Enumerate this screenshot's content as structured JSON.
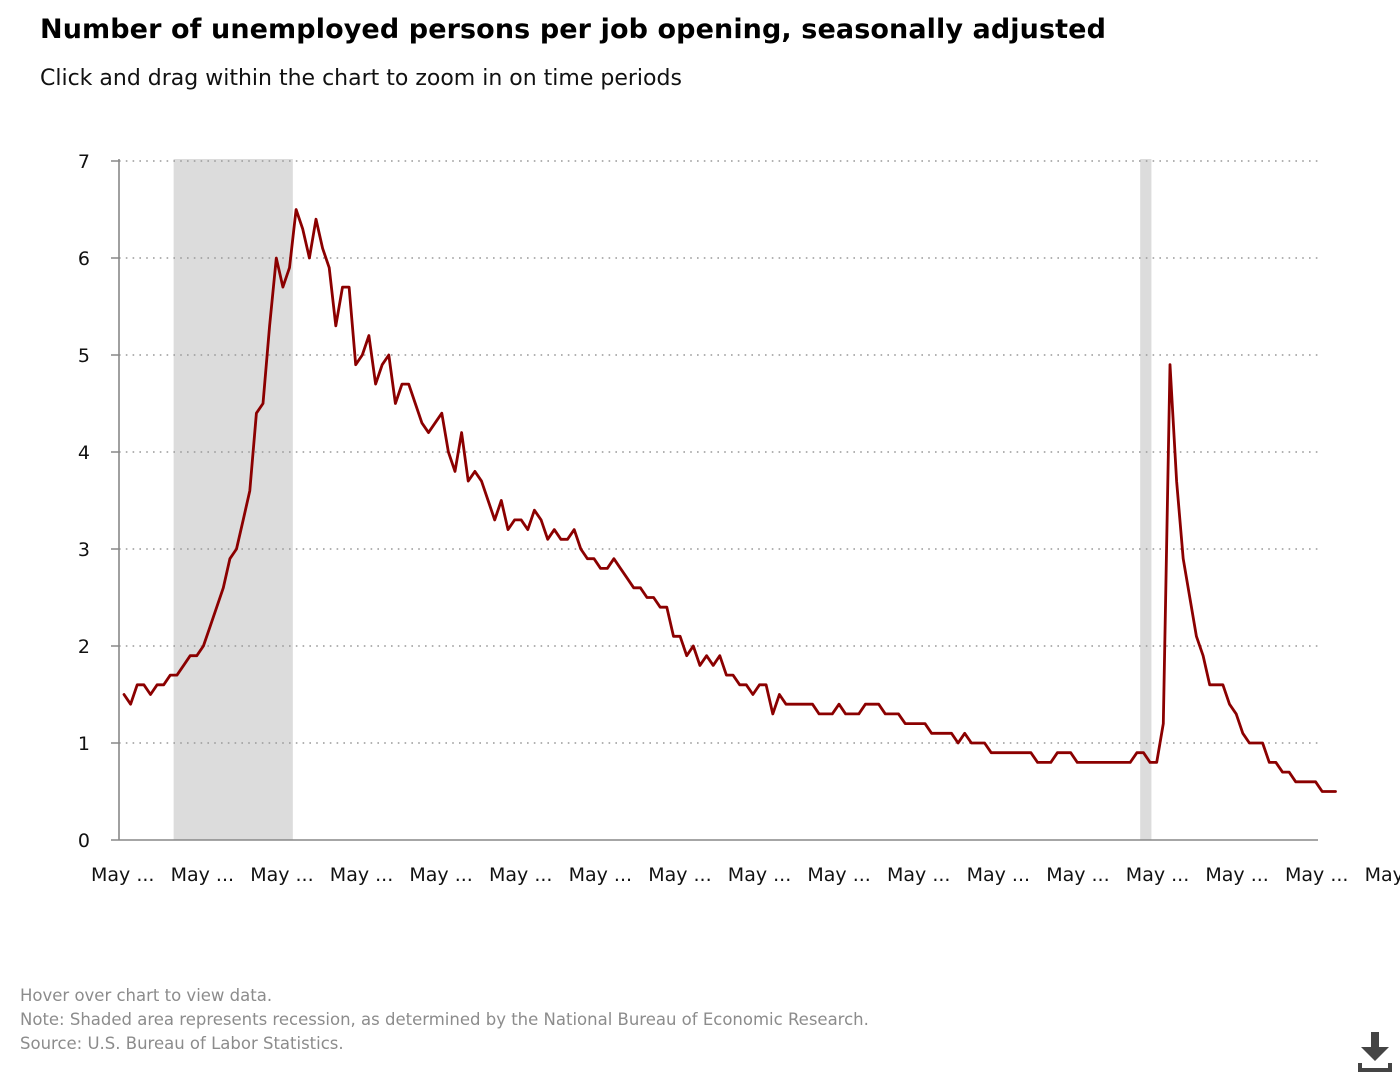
{
  "title": "Number of unemployed persons per job opening, seasonally adjusted",
  "subtitle": "Click and drag within the chart to zoom in on time periods",
  "footer": {
    "hover": "Hover over chart to view data.",
    "note": "Note: Shaded area represents recession, as determined by the National Bureau of Economic Research.",
    "source": "Source: U.S. Bureau of Labor Statistics."
  },
  "download_icon": "download-icon",
  "colors": {
    "line": "#8b0000",
    "recession": "#dcdcdc",
    "grid": "#999999",
    "axis": "#888888"
  },
  "chart_data": {
    "type": "line",
    "title": "Number of unemployed persons per job opening, seasonally adjusted",
    "xlabel": "",
    "ylabel": "",
    "ylim": [
      0,
      7
    ],
    "yticks": [
      "0",
      "1",
      "2",
      "3",
      "4",
      "5",
      "6",
      "7"
    ],
    "xtick_labels": [
      "May ...",
      "May ...",
      "May ...",
      "May ...",
      "May ...",
      "May ...",
      "May ...",
      "May ...",
      "May ...",
      "May ...",
      "May ...",
      "May ...",
      "May ...",
      "May ...",
      "May ...",
      "May ...",
      "May ..."
    ],
    "grid": "horizontal dotted",
    "recessions": [
      {
        "start_month": 7.5,
        "end_month": 25.5
      },
      {
        "start_month": 153.5,
        "end_month": 155.2
      }
    ],
    "series": [
      {
        "values": [
          1.5,
          1.4,
          1.6,
          1.6,
          1.5,
          1.6,
          1.6,
          1.7,
          1.7,
          1.8,
          1.9,
          1.9,
          2.0,
          2.2,
          2.4,
          2.6,
          2.9,
          3.0,
          3.3,
          3.6,
          4.4,
          4.5,
          5.3,
          6.0,
          5.7,
          5.9,
          6.5,
          6.3,
          6.0,
          6.4,
          6.1,
          5.9,
          5.3,
          5.7,
          5.7,
          4.9,
          5.0,
          5.2,
          4.7,
          4.9,
          5.0,
          4.5,
          4.7,
          4.7,
          4.5,
          4.3,
          4.2,
          4.3,
          4.4,
          4.0,
          3.8,
          4.2,
          3.7,
          3.8,
          3.7,
          3.5,
          3.3,
          3.5,
          3.2,
          3.3,
          3.3,
          3.2,
          3.4,
          3.3,
          3.1,
          3.2,
          3.1,
          3.1,
          3.2,
          3.0,
          2.9,
          2.9,
          2.8,
          2.8,
          2.9,
          2.8,
          2.7,
          2.6,
          2.6,
          2.5,
          2.5,
          2.4,
          2.4,
          2.1,
          2.1,
          1.9,
          2.0,
          1.8,
          1.9,
          1.8,
          1.9,
          1.7,
          1.7,
          1.6,
          1.6,
          1.5,
          1.6,
          1.6,
          1.3,
          1.5,
          1.4,
          1.4,
          1.4,
          1.4,
          1.4,
          1.3,
          1.3,
          1.3,
          1.4,
          1.3,
          1.3,
          1.3,
          1.4,
          1.4,
          1.4,
          1.3,
          1.3,
          1.3,
          1.2,
          1.2,
          1.2,
          1.2,
          1.1,
          1.1,
          1.1,
          1.1,
          1.0,
          1.1,
          1.0,
          1.0,
          1.0,
          0.9,
          0.9,
          0.9,
          0.9,
          0.9,
          0.9,
          0.9,
          0.8,
          0.8,
          0.8,
          0.9,
          0.9,
          0.9,
          0.8,
          0.8,
          0.8,
          0.8,
          0.8,
          0.8,
          0.8,
          0.8,
          0.8,
          0.9,
          0.9,
          0.8,
          0.8,
          1.2,
          4.9,
          3.7,
          2.9,
          2.5,
          2.1,
          1.9,
          1.6,
          1.6,
          1.6,
          1.4,
          1.3,
          1.1,
          1.0,
          1.0,
          1.0,
          0.8,
          0.8,
          0.7,
          0.7,
          0.6,
          0.6,
          0.6,
          0.6,
          0.5,
          0.5,
          0.5
        ]
      }
    ]
  }
}
